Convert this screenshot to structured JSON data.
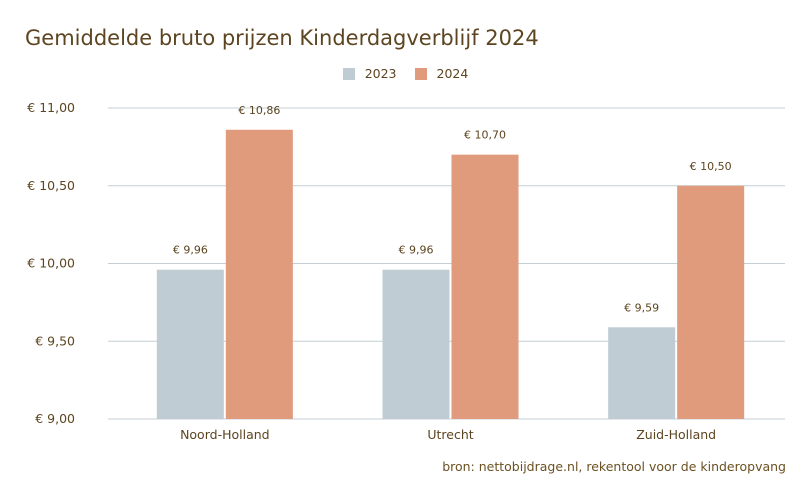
{
  "chart_data": {
    "type": "bar",
    "title": "Gemiddelde bruto prijzen Kinderdagverblijf 2024",
    "categories": [
      "Noord-Holland",
      "Utrecht",
      "Zuid-Holland"
    ],
    "series": [
      {
        "name": "2023",
        "color": "#bfccd4",
        "values": [
          9.96,
          9.96,
          9.59
        ],
        "labels": [
          "€ 9,96",
          "€ 9,96",
          "€ 9,59"
        ]
      },
      {
        "name": "2024",
        "color": "#e09a7c",
        "values": [
          10.86,
          10.7,
          10.5
        ],
        "labels": [
          "€ 10,86",
          "€ 10,70",
          "€ 10,50"
        ]
      }
    ],
    "ylim": [
      9,
      11
    ],
    "yticks": [
      9,
      9.5,
      10,
      10.5,
      11
    ],
    "ytick_labels": [
      "€ 9,00",
      "€ 9,50",
      "€ 10,00",
      "€ 10,50",
      "€ 11,00"
    ],
    "grid": true,
    "legend": "top-center",
    "xlabel": "",
    "ylabel": "",
    "source": "bron: nettobijdrage.nl, rekentool voor de kinderopvang"
  }
}
